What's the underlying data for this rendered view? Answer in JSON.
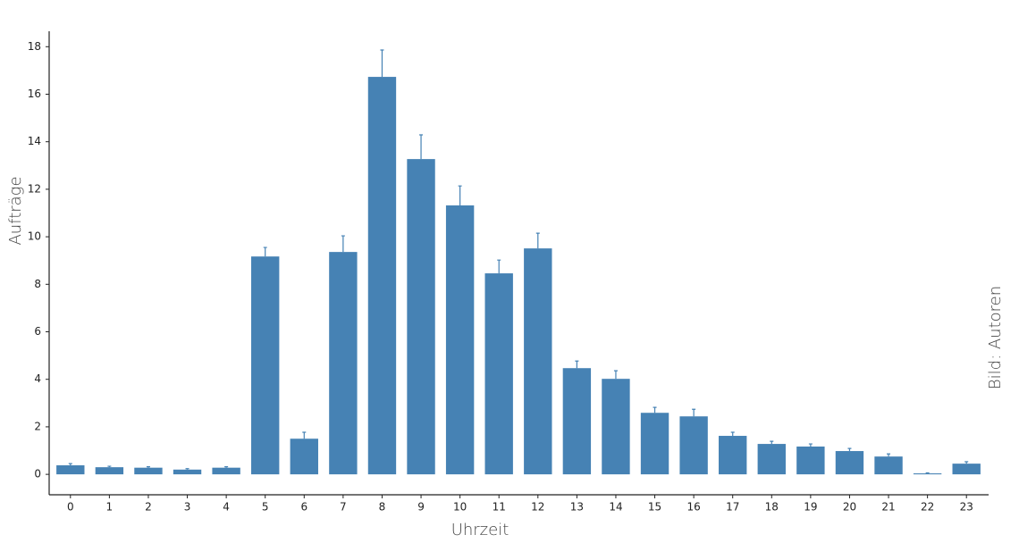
{
  "chart_data": {
    "type": "bar",
    "x_label": "Uhrzeit",
    "y_label": "Aufträge",
    "credit": "Bild: Autoren",
    "categories": [
      "0",
      "1",
      "2",
      "3",
      "4",
      "5",
      "6",
      "7",
      "8",
      "9",
      "10",
      "11",
      "12",
      "13",
      "14",
      "15",
      "16",
      "17",
      "18",
      "19",
      "20",
      "21",
      "22",
      "23"
    ],
    "values": [
      0.38,
      0.3,
      0.28,
      0.2,
      0.28,
      9.17,
      1.5,
      9.36,
      16.73,
      13.27,
      11.32,
      8.46,
      9.51,
      4.47,
      4.02,
      2.59,
      2.44,
      1.62,
      1.28,
      1.17,
      0.98,
      0.75,
      0.04,
      0.45
    ],
    "errors": [
      0.07,
      0.04,
      0.04,
      0.04,
      0.04,
      0.38,
      0.27,
      0.68,
      1.13,
      1.02,
      0.82,
      0.56,
      0.64,
      0.3,
      0.34,
      0.23,
      0.3,
      0.15,
      0.11,
      0.11,
      0.11,
      0.11,
      0.02,
      0.08
    ],
    "color": "#4682b4",
    "ylim": [
      -0.86,
      18.65
    ],
    "yticks": [
      0,
      2,
      4,
      6,
      8,
      10,
      12,
      14,
      16,
      18
    ],
    "grid": false
  }
}
